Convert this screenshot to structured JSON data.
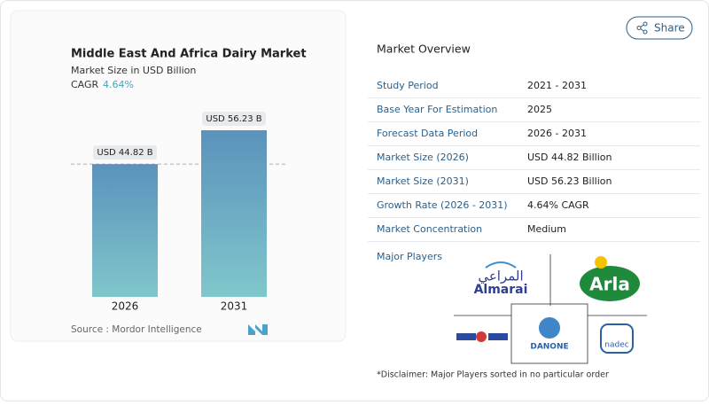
{
  "chart_data": {
    "type": "bar",
    "title": "Middle East And Africa Dairy Market",
    "subtitle": "Market Size in USD Billion",
    "cagr_label": "CAGR",
    "cagr": "4.64%",
    "categories": [
      "2026",
      "2031"
    ],
    "values": [
      44.82,
      56.23
    ],
    "value_labels": [
      "USD 44.82 B",
      "USD 56.23 B"
    ],
    "gradient": [
      "#5b92bc",
      "#80c7cb"
    ],
    "source": "Source : Mordor Intelligence"
  },
  "share": "Share",
  "overview": {
    "title": "Market Overview",
    "rows": [
      [
        "Study Period",
        "2021 - 2031"
      ],
      [
        "Base Year For Estimation",
        "2025"
      ],
      [
        "Forecast Data Period",
        "2026 - 2031"
      ],
      [
        "Market Size (2026)",
        "USD 44.82 Billion"
      ],
      [
        "Market Size (2031)",
        "USD 56.23 Billion"
      ],
      [
        "Growth Rate (2026 - 2031)",
        "4.64% CAGR"
      ],
      [
        "Market Concentration",
        "Medium"
      ]
    ]
  },
  "players": {
    "title": "Major Players",
    "almarai_ar": "المراعي",
    "almarai": "Almarai",
    "arla": "Arla",
    "danone": "DANONE",
    "nadec": "nadec"
  },
  "disclaimer": "*Disclaimer: Major Players sorted in no particular order"
}
